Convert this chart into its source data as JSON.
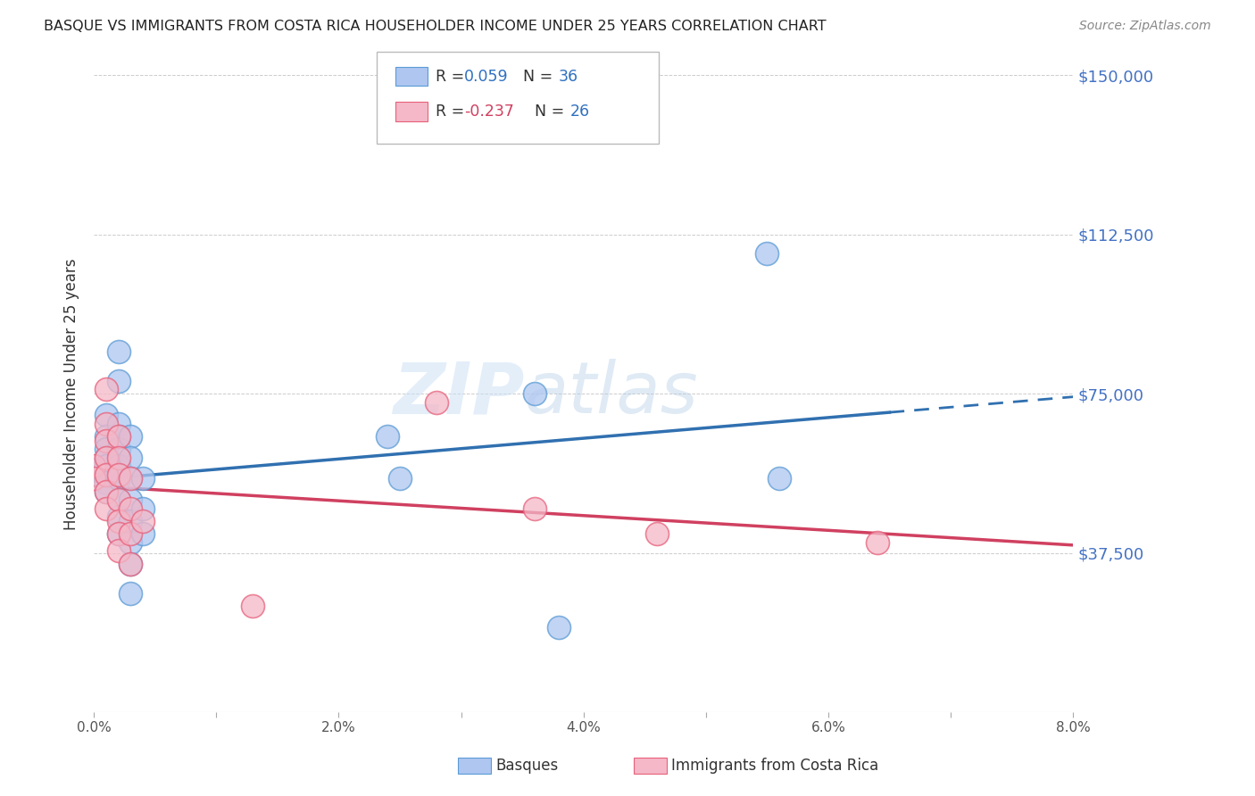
{
  "title": "BASQUE VS IMMIGRANTS FROM COSTA RICA HOUSEHOLDER INCOME UNDER 25 YEARS CORRELATION CHART",
  "source": "Source: ZipAtlas.com",
  "ylabel": "Householder Income Under 25 years",
  "yticks": [
    0,
    37500,
    75000,
    112500,
    150000
  ],
  "ytick_labels": [
    "",
    "$37,500",
    "$75,000",
    "$112,500",
    "$150,000"
  ],
  "xlim": [
    0.0,
    0.08
  ],
  "ylim": [
    0,
    150000
  ],
  "basque_color": "#aec6f0",
  "basque_edge_color": "#5b9bd5",
  "costa_rica_color": "#f4b8c8",
  "costa_rica_edge_color": "#e8607a",
  "basque_line_color": "#3070b0",
  "costa_rica_line_color": "#d04060",
  "watermark": "ZIPatlas",
  "background_color": "#ffffff",
  "grid_color": "#cccccc",
  "basque_points": [
    [
      0.0,
      57000
    ],
    [
      0.001,
      70000
    ],
    [
      0.001,
      65000
    ],
    [
      0.001,
      62000
    ],
    [
      0.001,
      60000
    ],
    [
      0.001,
      58000
    ],
    [
      0.001,
      56000
    ],
    [
      0.001,
      54000
    ],
    [
      0.001,
      52000
    ],
    [
      0.002,
      85000
    ],
    [
      0.002,
      78000
    ],
    [
      0.002,
      68000
    ],
    [
      0.002,
      65000
    ],
    [
      0.002,
      62000
    ],
    [
      0.002,
      58000
    ],
    [
      0.002,
      55000
    ],
    [
      0.002,
      50000
    ],
    [
      0.002,
      46000
    ],
    [
      0.002,
      42000
    ],
    [
      0.003,
      65000
    ],
    [
      0.003,
      60000
    ],
    [
      0.003,
      55000
    ],
    [
      0.003,
      50000
    ],
    [
      0.003,
      45000
    ],
    [
      0.003,
      40000
    ],
    [
      0.003,
      35000
    ],
    [
      0.003,
      28000
    ],
    [
      0.004,
      55000
    ],
    [
      0.004,
      48000
    ],
    [
      0.004,
      42000
    ],
    [
      0.024,
      65000
    ],
    [
      0.025,
      55000
    ],
    [
      0.036,
      75000
    ],
    [
      0.055,
      108000
    ],
    [
      0.056,
      55000
    ],
    [
      0.038,
      20000
    ]
  ],
  "costa_rica_points": [
    [
      0.0,
      58000
    ],
    [
      0.0,
      55000
    ],
    [
      0.001,
      68000
    ],
    [
      0.001,
      64000
    ],
    [
      0.001,
      60000
    ],
    [
      0.001,
      56000
    ],
    [
      0.001,
      52000
    ],
    [
      0.001,
      48000
    ],
    [
      0.001,
      76000
    ],
    [
      0.002,
      65000
    ],
    [
      0.002,
      60000
    ],
    [
      0.002,
      56000
    ],
    [
      0.002,
      50000
    ],
    [
      0.002,
      45000
    ],
    [
      0.002,
      42000
    ],
    [
      0.002,
      38000
    ],
    [
      0.003,
      55000
    ],
    [
      0.003,
      48000
    ],
    [
      0.003,
      42000
    ],
    [
      0.003,
      35000
    ],
    [
      0.004,
      45000
    ],
    [
      0.028,
      73000
    ],
    [
      0.036,
      48000
    ],
    [
      0.046,
      42000
    ],
    [
      0.064,
      40000
    ],
    [
      0.013,
      25000
    ]
  ],
  "r_basque": 0.059,
  "n_basque": 36,
  "r_costa": -0.237,
  "n_costa": 26
}
